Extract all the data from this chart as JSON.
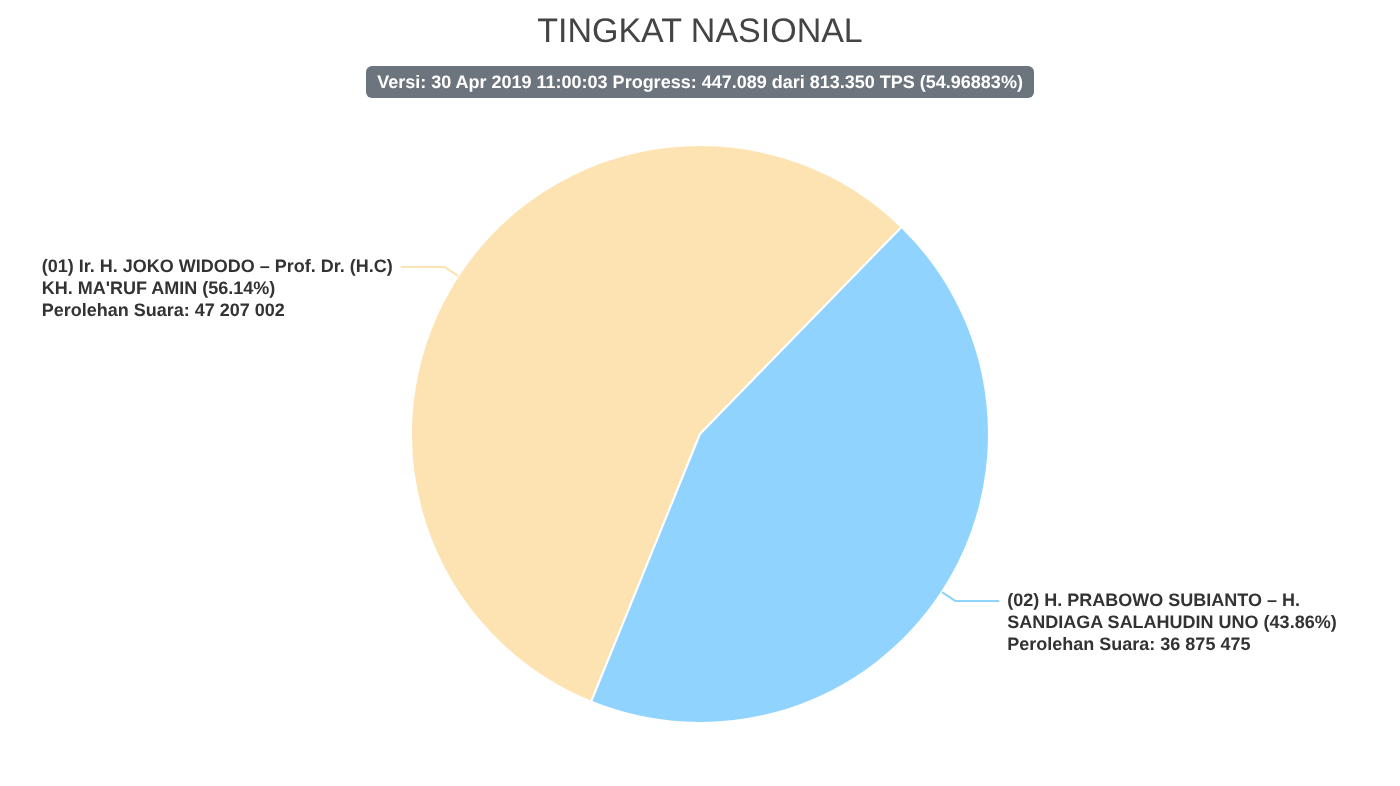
{
  "chart_data": {
    "type": "pie",
    "title": "TINGKAT NASIONAL",
    "subtitle": "Versi: 30 Apr 2019 11:00:03 Progress: 447.089 dari 813.350 TPS (54.96883%)",
    "categories": [
      "(01) Ir. H. JOKO WIDODO – Prof. Dr. (H.C) KH. MA'RUF AMIN (56.14%)",
      "(02) H. PRABOWO SUBIANTO – H. SANDIAGA SALAHUDIN UNO (43.86%)"
    ],
    "values": [
      47207002,
      36875475
    ],
    "value_labels": [
      "Perolehan Suara: 47 207 002",
      "Perolehan Suara: 36 875 475"
    ],
    "colors": [
      "#fde3b2",
      "#8fd3fe"
    ],
    "legend": false
  }
}
